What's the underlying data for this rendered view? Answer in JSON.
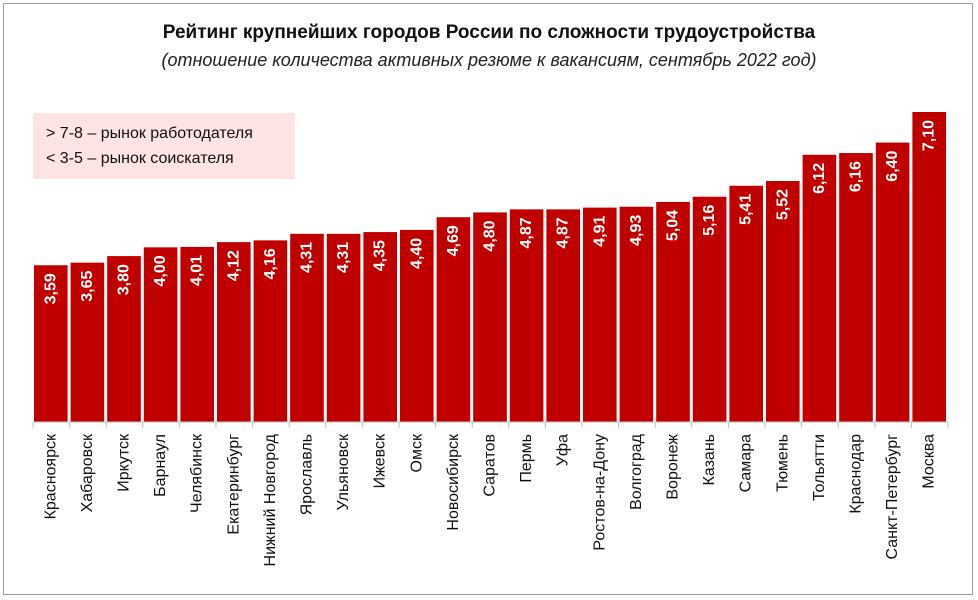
{
  "chart_data": {
    "type": "bar",
    "title": "Рейтинг крупнейших городов России по сложности трудоустройства",
    "subtitle": "(отношение количества активных резюме к вакансиям, сентябрь 2022 год)",
    "categories": [
      "Красноярск",
      "Хабаровск",
      "Иркутск",
      "Барнаул",
      "Челябинск",
      "Екатеринбург",
      "Нижний Новгород",
      "Ярославль",
      "Ульяновск",
      "Ижевск",
      "Омск",
      "Новосибирск",
      "Саратов",
      "Пермь",
      "Уфа",
      "Ростов-на-Дону",
      "Волгоград",
      "Воронеж",
      "Казань",
      "Самара",
      "Тюмень",
      "Тольятти",
      "Краснодар",
      "Санкт-Петербург",
      "Москва"
    ],
    "values": [
      3.59,
      3.65,
      3.8,
      4.0,
      4.01,
      4.12,
      4.16,
      4.31,
      4.31,
      4.35,
      4.4,
      4.69,
      4.8,
      4.87,
      4.87,
      4.91,
      4.93,
      5.04,
      5.16,
      5.41,
      5.52,
      6.12,
      6.16,
      6.4,
      7.1
    ],
    "value_labels": [
      "3,59",
      "3,65",
      "3,80",
      "4,00",
      "4,01",
      "4,12",
      "4,16",
      "4,31",
      "4,31",
      "4,35",
      "4,40",
      "4,69",
      "4,80",
      "4,87",
      "4,87",
      "4,91",
      "4,93",
      "5,04",
      "5,16",
      "5,41",
      "5,52",
      "6,12",
      "6,16",
      "6,40",
      "7,10"
    ],
    "ylim": [
      0,
      7.1
    ],
    "xlabel": "",
    "ylabel": "",
    "bar_color": "#c00000",
    "legend": {
      "lines": [
        "> 7-8 – рынок работодателя",
        "< 3-5 – рынок соискателя"
      ],
      "background": "#fce4e4"
    }
  }
}
